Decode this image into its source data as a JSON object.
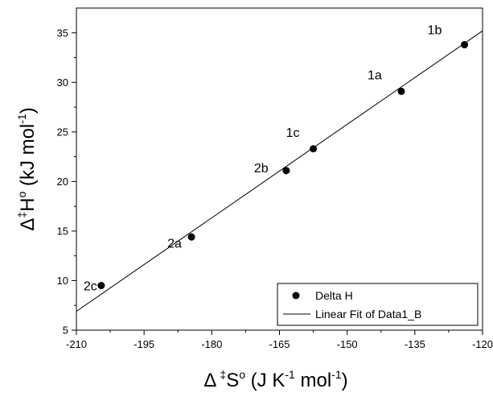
{
  "chart_data": {
    "type": "scatter",
    "xlabel": {
      "prefix": "Δ",
      "dagger": "‡",
      "main": "S",
      "sup1": "o",
      "unit_open": " (J K",
      "unit_exp1": "-1",
      "unit_mid": " mol",
      "unit_exp2": "-1",
      "unit_close": ")"
    },
    "ylabel": {
      "prefix": "Δ",
      "dagger": "‡",
      "main": "H",
      "sup1": "o",
      "unit_open": " (kJ mol",
      "unit_exp1": "-1",
      "unit_close": ")"
    },
    "xlim": [
      -210,
      -120
    ],
    "ylim": [
      5,
      37.5
    ],
    "x_ticks": [
      -210,
      -195,
      -180,
      -165,
      -150,
      -135,
      -120
    ],
    "y_ticks": [
      5,
      10,
      15,
      20,
      25,
      30,
      35
    ],
    "series": [
      {
        "name": "Delta H",
        "kind": "scatter",
        "points": [
          {
            "label": "1b",
            "x": -124.0,
            "y": 33.8
          },
          {
            "label": "1a",
            "x": -138.0,
            "y": 29.1
          },
          {
            "label": "1c",
            "x": -157.5,
            "y": 23.3
          },
          {
            "label": "2b",
            "x": -163.5,
            "y": 21.1
          },
          {
            "label": "2a",
            "x": -184.5,
            "y": 14.4
          },
          {
            "label": "2c",
            "x": -204.5,
            "y": 9.5
          }
        ]
      },
      {
        "name": "Linear Fit of Data1_B",
        "kind": "line",
        "x": [
          -210,
          -120
        ],
        "y": [
          6.9,
          35.2
        ]
      }
    ],
    "legend_position": "bottom-right",
    "grid": false,
    "colors": {
      "marker": "#000000",
      "line": "#000000"
    }
  }
}
